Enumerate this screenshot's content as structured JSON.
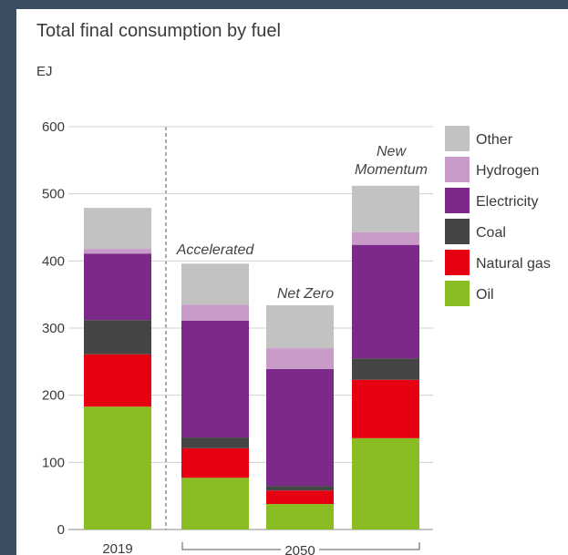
{
  "chart_data": {
    "type": "stacked_bar",
    "title": "Total final consumption by fuel",
    "y_label": "EJ",
    "categories": [
      "2019",
      "Accelerated",
      "Net Zero",
      "New Momentum"
    ],
    "group_label": "2050",
    "series": [
      {
        "name": "Oil",
        "color": "#8abd24",
        "values": [
          183,
          77,
          38,
          136
        ]
      },
      {
        "name": "Natural gas",
        "color": "#e60012",
        "values": [
          78,
          44,
          20,
          87
        ]
      },
      {
        "name": "Coal",
        "color": "#454545",
        "values": [
          51,
          16,
          7,
          32
        ]
      },
      {
        "name": "Electricity",
        "color": "#7b2a89",
        "values": [
          99,
          174,
          174,
          169
        ]
      },
      {
        "name": "Hydrogen",
        "color": "#c99bc9",
        "values": [
          7,
          24,
          31,
          19
        ]
      },
      {
        "name": "Other",
        "color": "#c2c2c2",
        "values": [
          61,
          61,
          64,
          69
        ]
      }
    ],
    "ylim": [
      0,
      600
    ],
    "yticks": [
      0,
      100,
      200,
      300,
      400,
      500,
      600
    ],
    "grid": true,
    "legend": "right"
  }
}
